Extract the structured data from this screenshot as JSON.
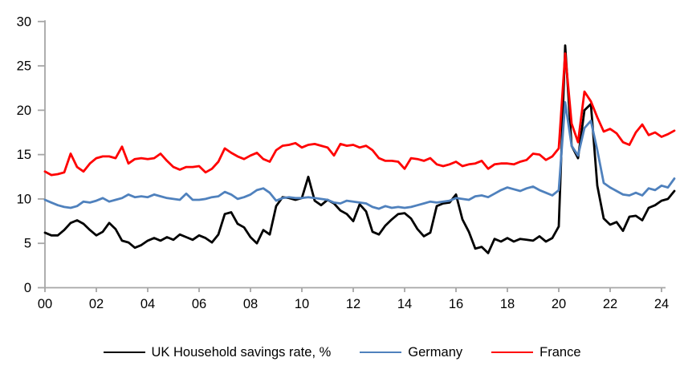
{
  "chart_data": {
    "type": "line",
    "title": "",
    "x_unit": "quarter",
    "x_start": "2000Q1",
    "x_end": "2024Q3",
    "grid": false,
    "legend_position": "bottom",
    "axis_color": "#a6a6a6",
    "label_color": "#000000",
    "x_axis": {
      "ticks": [
        {
          "label": "00",
          "year": 0
        },
        {
          "label": "02",
          "year": 2
        },
        {
          "label": "04",
          "year": 4
        },
        {
          "label": "06",
          "year": 6
        },
        {
          "label": "08",
          "year": 8
        },
        {
          "label": "10",
          "year": 10
        },
        {
          "label": "12",
          "year": 12
        },
        {
          "label": "14",
          "year": 14
        },
        {
          "label": "16",
          "year": 16
        },
        {
          "label": "18",
          "year": 18
        },
        {
          "label": "20",
          "year": 20
        },
        {
          "label": "22",
          "year": 22
        },
        {
          "label": "24",
          "year": 24
        }
      ]
    },
    "y_axis": {
      "min": 0,
      "max": 30,
      "ticks": [
        {
          "label": "0",
          "value": 0
        },
        {
          "label": "5",
          "value": 5
        },
        {
          "label": "10",
          "value": 10
        },
        {
          "label": "15",
          "value": 15
        },
        {
          "label": "20",
          "value": 20
        },
        {
          "label": "25",
          "value": 25
        },
        {
          "label": "30",
          "value": 30
        }
      ]
    },
    "series": [
      {
        "name": "UK Household savings rate, %",
        "color": "#000000",
        "values": [
          6.2,
          5.9,
          5.9,
          6.5,
          7.3,
          7.6,
          7.2,
          6.5,
          5.9,
          6.3,
          7.3,
          6.6,
          5.3,
          5.1,
          4.5,
          4.8,
          5.3,
          5.6,
          5.3,
          5.7,
          5.4,
          6.0,
          5.7,
          5.4,
          5.9,
          5.6,
          5.1,
          6.0,
          8.3,
          8.5,
          7.2,
          6.8,
          5.7,
          5.0,
          6.5,
          6.0,
          9.2,
          10.2,
          10.1,
          9.9,
          10.1,
          12.5,
          9.8,
          9.3,
          9.9,
          9.5,
          8.7,
          8.3,
          7.5,
          9.4,
          8.6,
          6.3,
          6.0,
          7.0,
          7.7,
          8.3,
          8.4,
          7.8,
          6.6,
          5.8,
          6.2,
          9.2,
          9.5,
          9.6,
          10.5,
          7.7,
          6.3,
          4.4,
          4.6,
          3.9,
          5.5,
          5.2,
          5.6,
          5.2,
          5.5,
          5.4,
          5.3,
          5.8,
          5.2,
          5.6,
          6.9,
          27.3,
          16.0,
          14.6,
          20.0,
          20.7,
          11.5,
          7.8,
          7.1,
          7.4,
          6.4,
          8.0,
          8.1,
          7.6,
          9.0,
          9.3,
          9.8,
          10.0,
          10.9
        ]
      },
      {
        "name": "Germany",
        "color": "#4f81bd",
        "values": [
          9.9,
          9.6,
          9.3,
          9.1,
          9.0,
          9.2,
          9.7,
          9.6,
          9.8,
          10.1,
          9.7,
          9.9,
          10.1,
          10.5,
          10.2,
          10.3,
          10.2,
          10.5,
          10.3,
          10.1,
          10.0,
          9.9,
          10.6,
          9.9,
          9.9,
          10.0,
          10.2,
          10.3,
          10.8,
          10.5,
          10.0,
          10.2,
          10.5,
          11.0,
          11.2,
          10.7,
          9.8,
          10.1,
          10.2,
          10.1,
          10.1,
          10.2,
          10.1,
          10.0,
          9.9,
          9.6,
          9.5,
          9.8,
          9.7,
          9.6,
          9.5,
          9.1,
          8.9,
          9.2,
          9.0,
          9.1,
          9.0,
          9.1,
          9.3,
          9.5,
          9.7,
          9.6,
          9.7,
          9.8,
          10.1,
          10.0,
          9.9,
          10.3,
          10.4,
          10.2,
          10.6,
          11.0,
          11.3,
          11.1,
          10.9,
          11.2,
          11.4,
          11.0,
          10.7,
          10.4,
          11.0,
          20.9,
          16.0,
          14.9,
          18.0,
          18.8,
          15.5,
          11.8,
          11.3,
          10.9,
          10.5,
          10.4,
          10.7,
          10.4,
          11.2,
          11.0,
          11.5,
          11.3,
          12.3
        ]
      },
      {
        "name": "France",
        "color": "#ff0000",
        "values": [
          13.1,
          12.7,
          12.8,
          13.0,
          15.1,
          13.6,
          13.1,
          14.0,
          14.6,
          14.8,
          14.8,
          14.6,
          15.9,
          14.0,
          14.5,
          14.6,
          14.5,
          14.6,
          15.1,
          14.3,
          13.6,
          13.3,
          13.6,
          13.6,
          13.7,
          13.0,
          13.4,
          14.2,
          15.7,
          15.2,
          14.8,
          14.5,
          14.9,
          15.2,
          14.5,
          14.2,
          15.5,
          16.0,
          16.1,
          16.3,
          15.8,
          16.1,
          16.2,
          16.0,
          15.8,
          14.9,
          16.2,
          16.0,
          16.1,
          15.8,
          16.0,
          15.5,
          14.6,
          14.3,
          14.3,
          14.2,
          13.4,
          14.6,
          14.5,
          14.3,
          14.6,
          13.9,
          13.7,
          13.9,
          14.2,
          13.7,
          13.9,
          14.0,
          14.3,
          13.4,
          13.9,
          14.0,
          14.0,
          13.9,
          14.2,
          14.4,
          15.1,
          15.0,
          14.4,
          14.8,
          15.7,
          26.4,
          18.5,
          16.4,
          22.1,
          21.0,
          19.2,
          17.6,
          17.9,
          17.4,
          16.4,
          16.1,
          17.5,
          18.4,
          17.2,
          17.5,
          17.0,
          17.3,
          17.7
        ]
      }
    ]
  }
}
